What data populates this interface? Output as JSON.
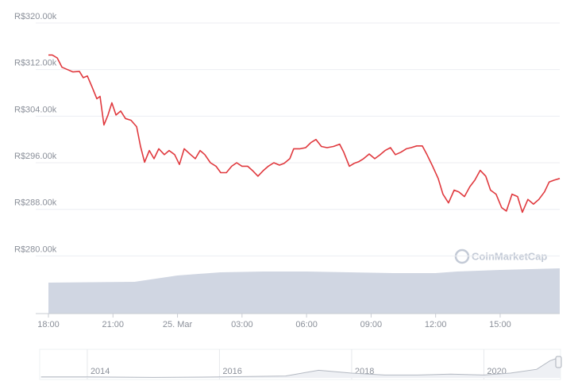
{
  "chart_data": {
    "type": "line",
    "color": "#e0393e",
    "x": [
      0,
      0.18,
      0.41,
      0.63,
      0.89,
      1.14,
      1.44,
      1.62,
      1.81,
      2.03,
      2.25,
      2.4,
      2.58,
      2.77,
      2.95,
      3.14,
      3.36,
      3.58,
      3.84,
      4.1,
      4.28,
      4.47,
      4.69,
      4.91,
      5.13,
      5.39,
      5.61,
      5.87,
      6.09,
      6.31,
      6.61,
      6.83,
      7.05,
      7.27,
      7.53,
      7.79,
      8.01,
      8.27,
      8.52,
      8.75,
      9.0,
      9.26,
      9.48,
      9.74,
      10.0,
      10.22,
      10.48,
      10.74,
      10.96,
      11.22,
      11.4,
      11.7,
      11.96,
      12.21,
      12.44,
      12.69,
      12.95,
      13.25,
      13.54,
      13.73,
      13.99,
      14.21,
      14.43,
      14.65,
      14.91,
      15.17,
      15.39,
      15.65,
      15.9,
      16.13,
      16.38,
      16.64,
      16.86,
      17.12,
      17.38,
      17.6,
      17.86,
      18.12,
      18.34,
      18.6,
      18.86,
      19.08,
      19.34,
      19.59,
      19.82,
      20.07,
      20.33,
      20.55,
      20.81,
      21.07,
      21.29,
      21.55,
      21.81,
      22.03,
      22.29,
      22.55,
      22.8,
      23.06,
      23.28,
      23.5,
      23.77
    ],
    "values": [
      314.5,
      314.5,
      314.0,
      312.4,
      312.0,
      311.6,
      311.7,
      310.6,
      310.9,
      309.0,
      307.0,
      307.4,
      302.5,
      304.2,
      306.3,
      304.2,
      304.9,
      303.6,
      303.3,
      302.2,
      298.8,
      296.1,
      298.1,
      296.7,
      298.4,
      297.4,
      298.1,
      297.4,
      295.7,
      298.4,
      297.4,
      296.7,
      298.1,
      297.4,
      296.0,
      295.4,
      294.3,
      294.3,
      295.4,
      296.0,
      295.4,
      295.4,
      294.7,
      293.7,
      294.7,
      295.4,
      296.0,
      295.6,
      295.9,
      296.7,
      298.4,
      298.4,
      298.6,
      299.5,
      300.0,
      298.8,
      298.6,
      298.8,
      299.2,
      297.8,
      295.4,
      295.9,
      296.2,
      296.7,
      297.5,
      296.7,
      297.3,
      298.1,
      298.6,
      297.4,
      297.8,
      298.4,
      298.6,
      298.9,
      298.9,
      297.4,
      295.4,
      293.3,
      290.6,
      289.1,
      291.3,
      291.0,
      290.2,
      291.9,
      293.0,
      294.7,
      293.7,
      291.3,
      290.6,
      288.3,
      287.7,
      290.6,
      290.2,
      287.5,
      289.7,
      288.9,
      289.7,
      291.0,
      292.7,
      293.0,
      293.3
    ],
    "xlim": [
      0,
      23.77
    ],
    "xticks": [
      {
        "value": 0,
        "label": "18:00"
      },
      {
        "value": 3,
        "label": "21:00"
      },
      {
        "value": 6,
        "label": "25. Mar"
      },
      {
        "value": 9,
        "label": "03:00"
      },
      {
        "value": 12,
        "label": "06:00"
      },
      {
        "value": 15,
        "label": "09:00"
      },
      {
        "value": 18,
        "label": "12:00"
      },
      {
        "value": 21,
        "label": "15:00"
      }
    ],
    "ylim": [
      270.1,
      320
    ],
    "yticks": [
      {
        "value": 280,
        "label": "R$280.00k"
      },
      {
        "value": 288,
        "label": "R$288.00k"
      },
      {
        "value": 296,
        "label": "R$296.00k"
      },
      {
        "value": 304,
        "label": "R$304.00k"
      },
      {
        "value": 312,
        "label": "R$312.00k"
      },
      {
        "value": 320,
        "label": "R$320.00k"
      }
    ],
    "grid": true,
    "volume": {
      "color": "#d0d6e2",
      "x": [
        0,
        4,
        5,
        6,
        8,
        10,
        12,
        14,
        16,
        18,
        19,
        21,
        23.77
      ],
      "values": [
        39,
        40,
        44,
        48,
        52,
        53,
        53,
        52,
        51,
        51,
        53,
        55,
        57
      ],
      "ylim": [
        0,
        60
      ]
    },
    "navigator": {
      "color": "#b4b9c2",
      "x": [
        2013.3,
        2014,
        2015,
        2016,
        2017,
        2017.5,
        2018,
        2018.5,
        2019,
        2019.5,
        2020,
        2020.4,
        2020.8,
        2021,
        2021.16
      ],
      "values": [
        1,
        1,
        0.5,
        1,
        2,
        8,
        5,
        3,
        3,
        4,
        3,
        5,
        9,
        18,
        22
      ],
      "xlim": [
        2013.28,
        2021.16
      ],
      "xticks": [
        2014,
        2016,
        2018,
        2020
      ],
      "ylim": [
        0,
        25
      ]
    },
    "watermark": "CoinMarketCap"
  }
}
